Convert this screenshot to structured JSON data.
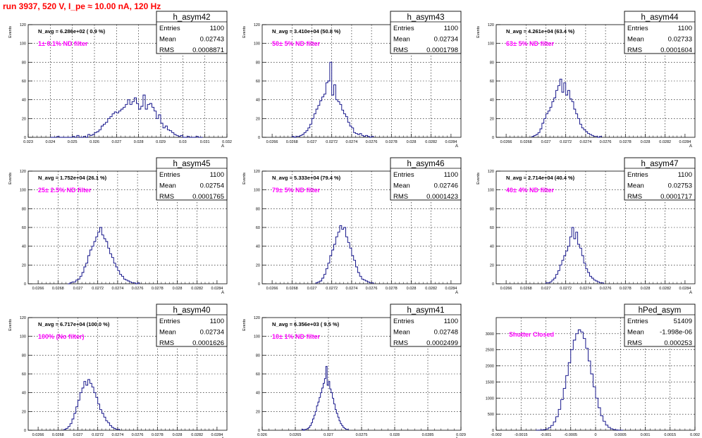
{
  "page": {
    "title": "run 3937,   520 V, I_pe ≈ 10.00 nA, 120 Hz"
  },
  "chart_data": [
    {
      "type": "histogram",
      "name": "h_asym42",
      "stats": {
        "entries_label": "Entries",
        "mean_label": "Mean",
        "rms_label": "RMS",
        "entries": "1100",
        "mean": "0.02743",
        "rms": "0.0008871"
      },
      "navg": "N_avg = 6.286e+02 ( 0.9 %)",
      "filter": "1± 0.1% ND filter",
      "ylabel": "Events",
      "xlabel": "A",
      "xlim": [
        0.023,
        0.032
      ],
      "ylim": [
        0,
        120
      ],
      "xticks": [
        "0.023",
        "0.024",
        "0.025",
        "0.026",
        "0.027",
        "0.028",
        "0.029",
        "0.03",
        "0.031",
        "0.032"
      ],
      "xtick_values": [
        0.023,
        0.024,
        0.025,
        0.026,
        0.027,
        0.028,
        0.029,
        0.03,
        0.031,
        0.032
      ],
      "yticks": [
        0,
        20,
        40,
        60,
        80,
        100,
        120
      ],
      "x0": 0.024,
      "dx": 0.0001,
      "counts": [
        0,
        0,
        0,
        1,
        0,
        0,
        0,
        0,
        0,
        0,
        1,
        0,
        2,
        0,
        0,
        1,
        0,
        3,
        2,
        3,
        5,
        6,
        8,
        12,
        14,
        16,
        20,
        22,
        25,
        27,
        26,
        28,
        30,
        32,
        35,
        40,
        35,
        38,
        42,
        36,
        30,
        33,
        45,
        30,
        35,
        36,
        32,
        28,
        20,
        24,
        15,
        10,
        12,
        8,
        7,
        5,
        3,
        2,
        1,
        2,
        0,
        0,
        1,
        0,
        0,
        0,
        1,
        0,
        0
      ]
    },
    {
      "type": "histogram",
      "name": "h_asym43",
      "stats": {
        "entries_label": "Entries",
        "mean_label": "Mean",
        "rms_label": "RMS",
        "entries": "1100",
        "mean": "0.02734",
        "rms": "0.0001798"
      },
      "navg": "N_avg = 3.410e+04 (50.8 %)",
      "filter": "50± 5% ND filter",
      "ylabel": "Events",
      "xlabel": "A",
      "xlim": [
        0.0265,
        0.0285
      ],
      "ylim": [
        0,
        120
      ],
      "xticks": [
        "0.0266",
        "0.0268",
        "0.027",
        "0.0272",
        "0.0274",
        "0.0276",
        "0.0278",
        "0.028",
        "0.0282",
        "0.0284"
      ],
      "xtick_values": [
        0.0266,
        0.0268,
        0.027,
        0.0272,
        0.0274,
        0.0276,
        0.0278,
        0.028,
        0.0282,
        0.0284
      ],
      "yticks": [
        0,
        20,
        40,
        60,
        80,
        100,
        120
      ],
      "x0": 0.0268,
      "dx": 2e-05,
      "counts": [
        1,
        0,
        1,
        1,
        2,
        3,
        5,
        7,
        10,
        14,
        20,
        25,
        30,
        34,
        39,
        43,
        46,
        58,
        60,
        80,
        45,
        56,
        40,
        38,
        35,
        29,
        25,
        22,
        16,
        12,
        10,
        5,
        4,
        3,
        4,
        2,
        1,
        2,
        1,
        0,
        1
      ]
    },
    {
      "type": "histogram",
      "name": "h_asym44",
      "stats": {
        "entries_label": "Entries",
        "mean_label": "Mean",
        "rms_label": "RMS",
        "entries": "1100",
        "mean": "0.02733",
        "rms": "0.0001604"
      },
      "navg": "N_avg = 4.261e+04 (63.4 %)",
      "filter": "63± 5% ND filter",
      "ylabel": "Events",
      "xlabel": "A",
      "xlim": [
        0.0265,
        0.0285
      ],
      "ylim": [
        0,
        120
      ],
      "xticks": [
        "0.0266",
        "0.0268",
        "0.027",
        "0.0272",
        "0.0274",
        "0.0276",
        "0.0278",
        "0.028",
        "0.0282",
        "0.0284"
      ],
      "xtick_values": [
        0.0266,
        0.0268,
        0.027,
        0.0272,
        0.0274,
        0.0276,
        0.0278,
        0.028,
        0.0282,
        0.0284
      ],
      "yticks": [
        0,
        20,
        40,
        60,
        80,
        100,
        120
      ],
      "x0": 0.02686,
      "dx": 2e-05,
      "counts": [
        1,
        2,
        3,
        5,
        9,
        15,
        20,
        25,
        28,
        32,
        38,
        42,
        50,
        55,
        62,
        48,
        58,
        45,
        50,
        41,
        38,
        30,
        25,
        20,
        14,
        10,
        8,
        6,
        4,
        3,
        2,
        1,
        1,
        0,
        1
      ]
    },
    {
      "type": "histogram",
      "name": "h_asym45",
      "stats": {
        "entries_label": "Entries",
        "mean_label": "Mean",
        "rms_label": "RMS",
        "entries": "1100",
        "mean": "0.02754",
        "rms": "0.0001765"
      },
      "navg": "N_avg = 1.752e+04 (26.1 %)",
      "filter": "25± 2.5% ND filter",
      "ylabel": "Events",
      "xlabel": "A",
      "xlim": [
        0.0265,
        0.0285
      ],
      "ylim": [
        0,
        120
      ],
      "xticks": [
        "0.0266",
        "0.0268",
        "0.027",
        "0.0272",
        "0.0274",
        "0.0276",
        "0.0278",
        "0.028",
        "0.0282",
        "0.0284"
      ],
      "xtick_values": [
        0.0266,
        0.0268,
        0.027,
        0.0272,
        0.0274,
        0.0276,
        0.0278,
        0.028,
        0.0282,
        0.0284
      ],
      "yticks": [
        0,
        20,
        40,
        60,
        80,
        100,
        120
      ],
      "x0": 0.0269,
      "dx": 2e-05,
      "counts": [
        0,
        1,
        2,
        2,
        4,
        5,
        8,
        12,
        18,
        22,
        30,
        36,
        40,
        45,
        50,
        55,
        60,
        52,
        48,
        45,
        38,
        32,
        28,
        22,
        18,
        14,
        10,
        8,
        5,
        4,
        3,
        2,
        1,
        1,
        0,
        1
      ]
    },
    {
      "type": "histogram",
      "name": "h_asym46",
      "stats": {
        "entries_label": "Entries",
        "mean_label": "Mean",
        "rms_label": "RMS",
        "entries": "1100",
        "mean": "0.02746",
        "rms": "0.0001423"
      },
      "navg": "N_avg = 5.333e+04 (79.4 %)",
      "filter": "79± 5% ND filter",
      "ylabel": "Events",
      "xlabel": "A",
      "xlim": [
        0.0265,
        0.0285
      ],
      "ylim": [
        0,
        120
      ],
      "xticks": [
        "0.0266",
        "0.0268",
        "0.027",
        "0.0272",
        "0.0274",
        "0.0276",
        "0.0278",
        "0.028",
        "0.0282",
        "0.0284"
      ],
      "xtick_values": [
        0.0266,
        0.0268,
        0.027,
        0.0272,
        0.0274,
        0.0276,
        0.0278,
        0.028,
        0.0282,
        0.0284
      ],
      "yticks": [
        0,
        20,
        40,
        60,
        80,
        100,
        120
      ],
      "x0": 0.02704,
      "dx": 2e-05,
      "counts": [
        1,
        2,
        3,
        6,
        10,
        16,
        22,
        30,
        36,
        42,
        50,
        55,
        62,
        58,
        60,
        50,
        44,
        38,
        30,
        25,
        18,
        12,
        8,
        5,
        4,
        3,
        2,
        1,
        1
      ]
    },
    {
      "type": "histogram",
      "name": "h_asym47",
      "stats": {
        "entries_label": "Entries",
        "mean_label": "Mean",
        "rms_label": "RMS",
        "entries": "1100",
        "mean": "0.02753",
        "rms": "0.0001717"
      },
      "navg": "N_avg = 2.714e+04 (40.4 %)",
      "filter": "40± 4% ND filter",
      "ylabel": "Events",
      "xlabel": "A",
      "xlim": [
        0.0265,
        0.0285
      ],
      "ylim": [
        0,
        120
      ],
      "xticks": [
        "0.0266",
        "0.0268",
        "0.027",
        "0.0272",
        "0.0274",
        "0.0276",
        "0.0278",
        "0.028",
        "0.0282",
        "0.0284"
      ],
      "xtick_values": [
        0.0266,
        0.0268,
        0.027,
        0.0272,
        0.0274,
        0.0276,
        0.0278,
        0.028,
        0.0282,
        0.0284
      ],
      "yticks": [
        0,
        20,
        40,
        60,
        80,
        100,
        120
      ],
      "x0": 0.027,
      "dx": 2e-05,
      "counts": [
        1,
        1,
        2,
        4,
        6,
        10,
        14,
        20,
        25,
        30,
        35,
        40,
        50,
        60,
        48,
        55,
        42,
        38,
        30,
        22,
        16,
        12,
        8,
        6,
        4,
        3,
        2,
        1,
        1
      ]
    },
    {
      "type": "histogram",
      "name": "h_asym40",
      "stats": {
        "entries_label": "Entries",
        "mean_label": "Mean",
        "rms_label": "RMS",
        "entries": "1100",
        "mean": "0.02734",
        "rms": "0.0001626"
      },
      "navg": "N_avg = 6.717e+04 (100.0 %)",
      "filter": "100% (No filter)",
      "ylabel": "Events",
      "xlabel": "A",
      "xlim": [
        0.0265,
        0.0285
      ],
      "ylim": [
        0,
        120
      ],
      "xticks": [
        "0.0266",
        "0.0268",
        "0.027",
        "0.0272",
        "0.0274",
        "0.0276",
        "0.0278",
        "0.028",
        "0.0282",
        "0.0284"
      ],
      "xtick_values": [
        0.0266,
        0.0268,
        0.027,
        0.0272,
        0.0274,
        0.0276,
        0.0278,
        0.028,
        0.0282,
        0.0284
      ],
      "yticks": [
        0,
        20,
        40,
        60,
        80,
        100,
        120
      ],
      "x0": 0.02686,
      "dx": 2e-05,
      "counts": [
        1,
        2,
        4,
        7,
        12,
        18,
        25,
        32,
        40,
        45,
        52,
        48,
        54,
        50,
        46,
        40,
        35,
        28,
        22,
        18,
        14,
        10,
        8,
        5,
        3,
        2,
        1,
        1
      ]
    },
    {
      "type": "histogram",
      "name": "h_asym41",
      "stats": {
        "entries_label": "Entries",
        "mean_label": "Mean",
        "rms_label": "RMS",
        "entries": "1100",
        "mean": "0.02748",
        "rms": "0.0002499"
      },
      "navg": "N_avg = 6.356e+03 ( 9.5 %)",
      "filter": "10± 1% ND filter",
      "ylabel": "Events",
      "xlabel": "A",
      "xlim": [
        0.026,
        0.029
      ],
      "ylim": [
        0,
        120
      ],
      "xticks": [
        "0.026",
        "0.0265",
        "0.027",
        "0.0275",
        "0.028",
        "0.0285",
        "0.029"
      ],
      "xtick_values": [
        0.026,
        0.0265,
        0.027,
        0.0275,
        0.028,
        0.0285,
        0.029
      ],
      "yticks": [
        0,
        20,
        40,
        60,
        80,
        100,
        120
      ],
      "x0": 0.0266,
      "dx": 2e-05,
      "counts": [
        1,
        0,
        1,
        1,
        2,
        3,
        5,
        8,
        12,
        16,
        20,
        26,
        30,
        35,
        40,
        45,
        50,
        55,
        68,
        48,
        52,
        44,
        40,
        34,
        28,
        22,
        18,
        14,
        10,
        7,
        5,
        3,
        2,
        1,
        1
      ]
    },
    {
      "type": "histogram",
      "name": "hPed_asym",
      "stats": {
        "entries_label": "Entries",
        "mean_label": "Mean",
        "rms_label": "RMS",
        "entries": "51409",
        "mean": "-1.998e-06",
        "rms": "0.000253"
      },
      "navg": "",
      "filter": "Shutter Closed",
      "ylabel": "",
      "xlabel": "",
      "xlim": [
        -0.002,
        0.002
      ],
      "ylim": [
        0,
        3500
      ],
      "xticks": [
        "-0.002",
        "-0.0015",
        "-0.001",
        "-0.0005",
        "0",
        "0.0005",
        "0.001",
        "0.0015",
        "0.002"
      ],
      "xtick_values": [
        -0.002,
        -0.0015,
        -0.001,
        -0.0005,
        0,
        0.0005,
        0.001,
        0.0015,
        0.002
      ],
      "yticks": [
        0,
        500,
        1000,
        1500,
        2000,
        2500,
        3000
      ],
      "x0": -0.0012,
      "dx": 5e-05,
      "counts": [
        2,
        5,
        10,
        20,
        40,
        80,
        150,
        260,
        420,
        650,
        950,
        1300,
        1700,
        2100,
        2500,
        2800,
        3000,
        3120,
        3050,
        2850,
        2550,
        2150,
        1750,
        1350,
        1000,
        700,
        450,
        280,
        160,
        90,
        45,
        20,
        10,
        5,
        2
      ]
    }
  ]
}
